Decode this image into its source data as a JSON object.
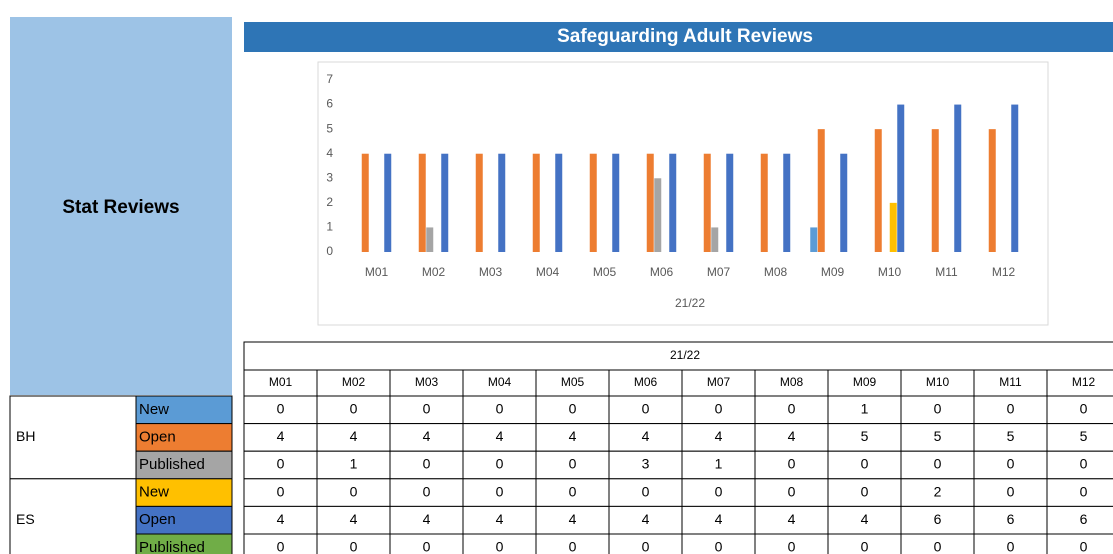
{
  "panel": {
    "title": "Stat Reviews"
  },
  "chart_data": {
    "type": "bar",
    "title": "Safeguarding Adult Reviews",
    "xlabel": "21/22",
    "categories": [
      "M01",
      "M02",
      "M03",
      "M04",
      "M05",
      "M06",
      "M07",
      "M08",
      "M09",
      "M10",
      "M11",
      "M12"
    ],
    "series": [
      {
        "name": "New",
        "color": "#5b9bd5",
        "values": [
          0,
          0,
          0,
          0,
          0,
          0,
          0,
          0,
          1,
          0,
          0,
          0
        ]
      },
      {
        "name": "Open",
        "color": "#ed7d31",
        "values": [
          4,
          4,
          4,
          4,
          4,
          4,
          4,
          4,
          5,
          5,
          5,
          5
        ]
      },
      {
        "name": "Published",
        "color": "#a5a5a5",
        "values": [
          0,
          1,
          0,
          0,
          0,
          3,
          1,
          0,
          0,
          0,
          0,
          0
        ]
      },
      {
        "name": "New",
        "color": "#ffc000",
        "values": [
          0,
          0,
          0,
          0,
          0,
          0,
          0,
          0,
          0,
          2,
          0,
          0
        ]
      },
      {
        "name": "Open",
        "color": "#4472c4",
        "values": [
          4,
          4,
          4,
          4,
          4,
          4,
          4,
          4,
          4,
          6,
          6,
          6
        ]
      },
      {
        "name": "Published",
        "color": "#70ad47",
        "values": [
          0,
          0,
          0,
          0,
          0,
          0,
          0,
          0,
          0,
          0,
          0,
          0
        ]
      }
    ],
    "ylim": [
      0,
      7
    ],
    "yticks": [
      0,
      1,
      2,
      3,
      4,
      5,
      6,
      7
    ],
    "grid": false,
    "legend": false
  },
  "table": {
    "groups": [
      "BH",
      "ES"
    ]
  }
}
